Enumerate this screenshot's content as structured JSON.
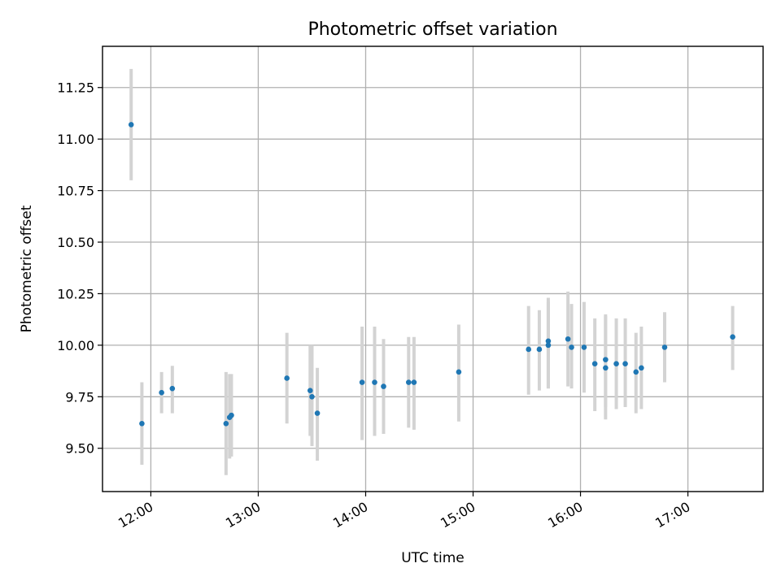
{
  "chart_data": {
    "type": "scatter",
    "title": "Photometric offset variation",
    "xlabel": "UTC time",
    "ylabel": "Photometric offset",
    "xlim": [
      "11:33",
      "17:42"
    ],
    "ylim": [
      9.29,
      11.45
    ],
    "grid": true,
    "x_ticks": [
      "12:00",
      "13:00",
      "14:00",
      "15:00",
      "16:00",
      "17:00"
    ],
    "y_ticks": [
      "9.50",
      "9.75",
      "10.00",
      "10.25",
      "10.50",
      "10.75",
      "11.00",
      "11.25"
    ],
    "point_color": "#1f77b4",
    "errorbar_color": "#d3d3d3",
    "points": [
      {
        "x": "11:49",
        "y": 11.07,
        "lo": 10.8,
        "hi": 11.34
      },
      {
        "x": "11:55",
        "y": 9.62,
        "lo": 9.42,
        "hi": 9.82
      },
      {
        "x": "12:06",
        "y": 9.77,
        "lo": 9.67,
        "hi": 9.87
      },
      {
        "x": "12:12",
        "y": 9.79,
        "lo": 9.67,
        "hi": 9.9
      },
      {
        "x": "12:42",
        "y": 9.62,
        "lo": 9.37,
        "hi": 9.87
      },
      {
        "x": "12:44",
        "y": 9.65,
        "lo": 9.45,
        "hi": 9.86
      },
      {
        "x": "12:45",
        "y": 9.66,
        "lo": 9.46,
        "hi": 9.86
      },
      {
        "x": "13:16",
        "y": 9.84,
        "lo": 9.62,
        "hi": 10.06
      },
      {
        "x": "13:29",
        "y": 9.78,
        "lo": 9.56,
        "hi": 10.0
      },
      {
        "x": "13:30",
        "y": 9.75,
        "lo": 9.51,
        "hi": 10.0
      },
      {
        "x": "13:33",
        "y": 9.67,
        "lo": 9.44,
        "hi": 9.89
      },
      {
        "x": "13:58",
        "y": 9.82,
        "lo": 9.54,
        "hi": 10.09
      },
      {
        "x": "14:05",
        "y": 9.82,
        "lo": 9.56,
        "hi": 10.09
      },
      {
        "x": "14:10",
        "y": 9.8,
        "lo": 9.57,
        "hi": 10.03
      },
      {
        "x": "14:24",
        "y": 9.82,
        "lo": 9.6,
        "hi": 10.04
      },
      {
        "x": "14:27",
        "y": 9.82,
        "lo": 9.59,
        "hi": 10.04
      },
      {
        "x": "14:52",
        "y": 9.87,
        "lo": 9.63,
        "hi": 10.1
      },
      {
        "x": "15:31",
        "y": 9.98,
        "lo": 9.76,
        "hi": 10.19
      },
      {
        "x": "15:37",
        "y": 9.98,
        "lo": 9.78,
        "hi": 10.17
      },
      {
        "x": "15:42",
        "y": 10.02,
        "lo": 9.79,
        "hi": 10.23
      },
      {
        "x": "15:42",
        "y": 10.0,
        "lo": 9.79,
        "hi": 10.21
      },
      {
        "x": "15:53",
        "y": 10.03,
        "lo": 9.8,
        "hi": 10.26
      },
      {
        "x": "15:55",
        "y": 9.99,
        "lo": 9.79,
        "hi": 10.2
      },
      {
        "x": "16:02",
        "y": 9.99,
        "lo": 9.77,
        "hi": 10.21
      },
      {
        "x": "16:08",
        "y": 9.91,
        "lo": 9.68,
        "hi": 10.13
      },
      {
        "x": "16:14",
        "y": 9.93,
        "lo": 9.7,
        "hi": 10.15
      },
      {
        "x": "16:14",
        "y": 9.89,
        "lo": 9.64,
        "hi": 10.14
      },
      {
        "x": "16:20",
        "y": 9.91,
        "lo": 9.69,
        "hi": 10.13
      },
      {
        "x": "16:25",
        "y": 9.91,
        "lo": 9.7,
        "hi": 10.13
      },
      {
        "x": "16:31",
        "y": 9.87,
        "lo": 9.67,
        "hi": 10.06
      },
      {
        "x": "16:34",
        "y": 9.89,
        "lo": 9.69,
        "hi": 10.09
      },
      {
        "x": "16:47",
        "y": 9.99,
        "lo": 9.82,
        "hi": 10.16
      },
      {
        "x": "17:25",
        "y": 10.04,
        "lo": 9.88,
        "hi": 10.19
      }
    ]
  }
}
